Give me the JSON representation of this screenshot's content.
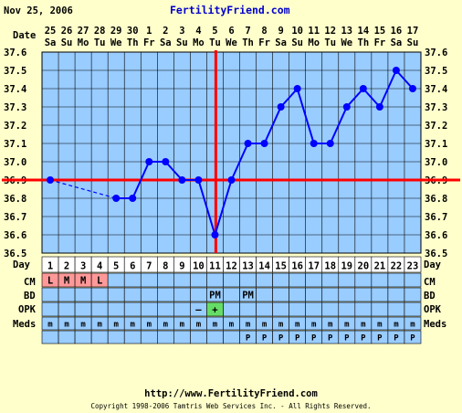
{
  "header": {
    "date": "Nov 25, 2006",
    "site": "FertilityFriend.com"
  },
  "footer": {
    "url": "http://www.FertilityFriend.com",
    "copyright": "Copyright 1998-2006 Tamtris Web Services Inc. - All Rights Reserved."
  },
  "row_labels": {
    "date": "Date",
    "day": "Day",
    "cm": "CM",
    "bd": "BD",
    "opk": "OPK",
    "meds": "Meds"
  },
  "colors": {
    "background": "#FFFFCC",
    "plot": "#99CCFF",
    "grid": "#000000",
    "line": "#0000FF",
    "coverline": "#FF0000",
    "cm_cell": "#FF9999",
    "opk_pos": "#66DD66",
    "row_cell": "#99CCFF",
    "site_text": "#0000CC"
  },
  "chart_data": {
    "type": "line",
    "title": "",
    "xlabel": "",
    "ylabel": "",
    "dates": [
      "25",
      "26",
      "27",
      "28",
      "29",
      "30",
      "1",
      "2",
      "3",
      "4",
      "5",
      "6",
      "7",
      "8",
      "9",
      "10",
      "11",
      "12",
      "13",
      "14",
      "15",
      "16",
      "17"
    ],
    "weekdays": [
      "Sa",
      "Su",
      "Mo",
      "Tu",
      "We",
      "Th",
      "Fr",
      "Sa",
      "Su",
      "Mo",
      "Tu",
      "We",
      "Th",
      "Fr",
      "Sa",
      "Su",
      "Mo",
      "Tu",
      "We",
      "Th",
      "Fr",
      "Sa",
      "Su"
    ],
    "days": [
      "1",
      "2",
      "3",
      "4",
      "5",
      "6",
      "7",
      "8",
      "9",
      "10",
      "11",
      "12",
      "13",
      "14",
      "15",
      "16",
      "17",
      "18",
      "19",
      "20",
      "21",
      "22",
      "23"
    ],
    "temps": [
      36.9,
      null,
      null,
      null,
      36.8,
      36.8,
      37.0,
      37.0,
      36.9,
      36.9,
      36.6,
      36.9,
      37.1,
      37.1,
      37.3,
      37.4,
      37.1,
      37.1,
      37.3,
      37.4,
      37.3,
      37.5,
      37.4
    ],
    "y_ticks": [
      "37.6",
      "37.5",
      "37.4",
      "37.3",
      "37.2",
      "37.1",
      "37.0",
      "36.9",
      "36.8",
      "36.7",
      "36.6",
      "36.5"
    ],
    "ylim": [
      36.5,
      37.6
    ],
    "coverline": 36.9,
    "ovulation_day": 11,
    "grid": true,
    "cm": [
      "L",
      "M",
      "M",
      "L",
      "",
      "",
      "",
      "",
      "",
      "",
      "",
      "",
      "",
      "",
      "",
      "",
      "",
      "",
      "",
      "",
      "",
      "",
      ""
    ],
    "bd": [
      "",
      "",
      "",
      "",
      "",
      "",
      "",
      "",
      "",
      "",
      "PM",
      "",
      "PM",
      "",
      "",
      "",
      "",
      "",
      "",
      "",
      "",
      "",
      ""
    ],
    "opk": [
      "",
      "",
      "",
      "",
      "",
      "",
      "",
      "",
      "",
      "–",
      "+",
      "",
      "",
      "",
      "",
      "",
      "",
      "",
      "",
      "",
      "",
      "",
      ""
    ],
    "meds_row1": [
      "m",
      "m",
      "m",
      "m",
      "m",
      "m",
      "m",
      "m",
      "m",
      "m",
      "m",
      "m",
      "m",
      "m",
      "m",
      "m",
      "m",
      "m",
      "m",
      "m",
      "m",
      "m",
      "m"
    ],
    "meds_row2": [
      "",
      "",
      "",
      "",
      "",
      "",
      "",
      "",
      "",
      "",
      "",
      "",
      "P",
      "P",
      "P",
      "P",
      "P",
      "P",
      "P",
      "P",
      "P",
      "P",
      "P"
    ]
  }
}
